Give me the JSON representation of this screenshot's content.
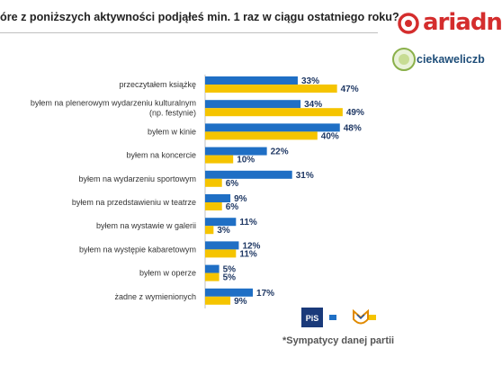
{
  "header": {
    "title": "óre z poniższych aktywności podjąłeś min. 1 raz w ciągu ostatniego roku?",
    "brand": "ariadn",
    "brand2": "ciekaweliczb"
  },
  "footnote": "*Sympatycy danej partii",
  "legend": {
    "items": [
      {
        "logo": "PiS",
        "color": "#1f6fc5"
      },
      {
        "logo": "Platforma Obywatelska",
        "color": "#f5c400"
      }
    ]
  },
  "colors": {
    "pis": "#1f6fc5",
    "po": "#f5c400"
  },
  "chart_data": {
    "type": "bar",
    "orientation": "horizontal",
    "categories": [
      "przeczytałem książkę",
      "byłem na plenerowym wydarzeniu kulturalnym (np. festynie)",
      "byłem w kinie",
      "byłem na koncercie",
      "byłem na wydarzeniu sportowym",
      "byłem na przedstawieniu w teatrze",
      "byłem na wystawie w galerii",
      "byłem na występie kabaretowym",
      "byłem w operze",
      "żadne z wymienionych"
    ],
    "series": [
      {
        "values": [
          33,
          34,
          48,
          22,
          31,
          9,
          11,
          12,
          5,
          17
        ]
      },
      {
        "values": [
          47,
          49,
          40,
          10,
          6,
          6,
          3,
          11,
          5,
          9
        ]
      }
    ],
    "value_suffix": "%",
    "xlim": [
      0,
      50
    ]
  }
}
